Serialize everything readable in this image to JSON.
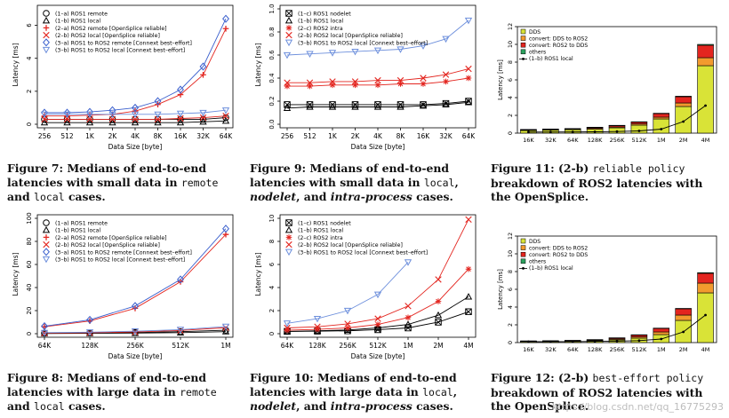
{
  "charts": [
    {
      "id": "fig7",
      "type": "line",
      "x_categories": [
        "256",
        "512",
        "1K",
        "2K",
        "4K",
        "8K",
        "16K",
        "32K",
        "64K"
      ],
      "ylabel": "Latency [ms]",
      "xlabel": "Data Size [byte]",
      "ylim": [
        0,
        7
      ],
      "yticks": [
        0,
        2,
        4,
        6
      ],
      "legend": "top-left",
      "series": [
        {
          "name": "(1–a) ROS1 remote",
          "marker": "circle",
          "color": "#000000",
          "values": [
            0.3,
            0.3,
            0.3,
            0.3,
            0.3,
            0.3,
            0.3,
            0.3,
            0.4
          ]
        },
        {
          "name": "(1–b) ROS1 local",
          "marker": "triangle",
          "color": "#000000",
          "values": [
            0.1,
            0.1,
            0.1,
            0.1,
            0.1,
            0.1,
            0.1,
            0.15,
            0.2
          ]
        },
        {
          "name": "(2–a) ROS2 remote [OpenSplice reliable]",
          "marker": "plus",
          "color": "#e3251f",
          "values": [
            0.5,
            0.5,
            0.55,
            0.6,
            0.8,
            1.2,
            1.8,
            3.0,
            5.8
          ]
        },
        {
          "name": "(2–b) ROS2 local [OpenSplice reliable]",
          "marker": "x",
          "color": "#e3251f",
          "values": [
            0.3,
            0.3,
            0.3,
            0.3,
            0.3,
            0.3,
            0.35,
            0.4,
            0.5
          ]
        },
        {
          "name": "(3–a) ROS1 to ROS2 remote [Connext best–effort]",
          "marker": "diamond",
          "color": "#3a5fcd",
          "values": [
            0.7,
            0.7,
            0.75,
            0.85,
            1.0,
            1.4,
            2.1,
            3.5,
            6.4
          ]
        },
        {
          "name": "(3–b) ROS1 to ROS2 local [Connext best–effort]",
          "marker": "dtriangle",
          "color": "#6d8fdc",
          "values": [
            0.6,
            0.6,
            0.6,
            0.6,
            0.6,
            0.6,
            0.65,
            0.7,
            0.85
          ]
        }
      ]
    },
    {
      "id": "fig9",
      "type": "line",
      "x_categories": [
        "256",
        "512",
        "1K",
        "2K",
        "4K",
        "8K",
        "16K",
        "32K",
        "64K"
      ],
      "ylabel": "Latency [ms]",
      "xlabel": "Data Size [byte]",
      "ylim": [
        0,
        1
      ],
      "yticks": [
        0.0,
        0.2,
        0.4,
        0.6,
        0.8,
        1.0
      ],
      "legend": "top-left",
      "series": [
        {
          "name": "(1–c) ROS1 nodelet",
          "marker": "boxx",
          "color": "#000000",
          "values": [
            0.17,
            0.17,
            0.17,
            0.17,
            0.17,
            0.17,
            0.17,
            0.18,
            0.2
          ]
        },
        {
          "name": "(1–b) ROS1 local",
          "marker": "triangle",
          "color": "#000000",
          "values": [
            0.14,
            0.15,
            0.15,
            0.15,
            0.15,
            0.15,
            0.16,
            0.17,
            0.19
          ]
        },
        {
          "name": "(2–c) ROS2 intra",
          "marker": "star",
          "color": "#e3251f",
          "values": [
            0.33,
            0.33,
            0.34,
            0.34,
            0.34,
            0.35,
            0.35,
            0.37,
            0.4
          ]
        },
        {
          "name": "(2–b) ROS2 local [OpenSplice reliable]",
          "marker": "x",
          "color": "#e3251f",
          "values": [
            0.36,
            0.36,
            0.37,
            0.37,
            0.38,
            0.38,
            0.4,
            0.43,
            0.48
          ]
        },
        {
          "name": "(3–b) ROS1 to ROS2 local [Connext best–effort]",
          "marker": "dtriangle",
          "color": "#6d8fdc",
          "values": [
            0.6,
            0.61,
            0.62,
            0.63,
            0.64,
            0.65,
            0.68,
            0.74,
            0.9
          ]
        }
      ]
    },
    {
      "id": "fig11",
      "type": "bar",
      "x_categories": [
        "16K",
        "32K",
        "64K",
        "128K",
        "256K",
        "512K",
        "1M",
        "2M",
        "4M"
      ],
      "ylabel": "Latency [ms]",
      "ylim": [
        0,
        12
      ],
      "yticks": [
        0,
        2,
        4,
        6,
        8,
        10,
        12
      ],
      "legend": "top-left",
      "stacks": [
        {
          "name": "DDS",
          "color": "#d9e337",
          "values": [
            0.3,
            0.35,
            0.4,
            0.45,
            0.6,
            0.9,
            1.6,
            3.0,
            7.6
          ]
        },
        {
          "name": "convert: DDS to ROS2",
          "color": "#f29a2e",
          "values": [
            0.05,
            0.05,
            0.05,
            0.1,
            0.1,
            0.15,
            0.2,
            0.4,
            0.9
          ]
        },
        {
          "name": "convert: ROS2 to DDS",
          "color": "#e3251f",
          "values": [
            0.05,
            0.05,
            0.05,
            0.1,
            0.15,
            0.2,
            0.4,
            0.7,
            1.4
          ]
        },
        {
          "name": "others",
          "color": "#2ca25f",
          "values": [
            0.02,
            0.02,
            0.02,
            0.02,
            0.03,
            0.03,
            0.04,
            0.06,
            0.1
          ]
        }
      ],
      "line": {
        "name": "(1–b) ROS1 local",
        "color": "#000000",
        "values": [
          0.12,
          0.13,
          0.13,
          0.15,
          0.18,
          0.25,
          0.45,
          1.3,
          3.1
        ]
      }
    },
    {
      "id": "fig8",
      "type": "line",
      "x_categories": [
        "64K",
        "128K",
        "256K",
        "512K",
        "1M"
      ],
      "ylabel": "Latency [ms]",
      "xlabel": "Data Size [byte]",
      "ylim": [
        0,
        100
      ],
      "yticks": [
        0,
        20,
        40,
        60,
        80,
        100
      ],
      "legend": "top-left",
      "series": [
        {
          "name": "(1–a) ROS1 remote",
          "marker": "circle",
          "color": "#000000",
          "values": [
            0.4,
            0.6,
            1.0,
            1.8,
            3.0
          ]
        },
        {
          "name": "(1–b) ROS1 local",
          "marker": "triangle",
          "color": "#000000",
          "values": [
            0.2,
            0.3,
            0.5,
            0.9,
            1.8
          ]
        },
        {
          "name": "(2–a) ROS2 remote [OpenSplice reliable]",
          "marker": "plus",
          "color": "#e3251f",
          "values": [
            6,
            11,
            22,
            45,
            86
          ]
        },
        {
          "name": "(2–b) ROS2 local [OpenSplice reliable]",
          "marker": "x",
          "color": "#e3251f",
          "values": [
            0.5,
            0.8,
            1.5,
            2.8,
            5.2
          ]
        },
        {
          "name": "(3–a) ROS1 to ROS2 remote [Connext best–effort]",
          "marker": "diamond",
          "color": "#3a5fcd",
          "values": [
            6.5,
            12,
            24,
            47,
            91
          ]
        },
        {
          "name": "(3–b) ROS1 to ROS2 local [Connext best–effort]",
          "marker": "dtriangle",
          "color": "#6d8fdc",
          "values": [
            0.9,
            1.3,
            2.2,
            3.5,
            6.2
          ]
        }
      ]
    },
    {
      "id": "fig10",
      "type": "line",
      "x_categories": [
        "64K",
        "128K",
        "256K",
        "512K",
        "1M",
        "2M",
        "4M"
      ],
      "ylabel": "Latency [ms]",
      "xlabel": "Data Size [byte]",
      "ylim": [
        0,
        10
      ],
      "yticks": [
        0,
        2,
        4,
        6,
        8,
        10
      ],
      "legend": "top-left",
      "series": [
        {
          "name": "(1–c) ROS1 nodelet",
          "marker": "boxx",
          "color": "#000000",
          "values": [
            0.2,
            0.22,
            0.25,
            0.35,
            0.5,
            1.0,
            1.9
          ]
        },
        {
          "name": "(1–b) ROS1 local",
          "marker": "triangle",
          "color": "#000000",
          "values": [
            0.2,
            0.25,
            0.32,
            0.5,
            0.8,
            1.6,
            3.2
          ]
        },
        {
          "name": "(2–c) ROS2 intra",
          "marker": "star",
          "color": "#e3251f",
          "values": [
            0.3,
            0.38,
            0.5,
            0.8,
            1.4,
            2.8,
            5.6
          ]
        },
        {
          "name": "(2–b) ROS2 local [OpenSplice reliable]",
          "marker": "x",
          "color": "#e3251f",
          "values": [
            0.5,
            0.6,
            0.85,
            1.3,
            2.4,
            4.7,
            9.9
          ]
        },
        {
          "name": "(3–b) ROS1 to ROS2 local [Connext best–effort]",
          "marker": "dtriangle",
          "color": "#6d8fdc",
          "values": [
            0.9,
            1.3,
            2.0,
            3.4,
            6.2,
            null,
            null
          ]
        }
      ]
    },
    {
      "id": "fig12",
      "type": "bar",
      "x_categories": [
        "16K",
        "32K",
        "64K",
        "128K",
        "256K",
        "512K",
        "1M",
        "2M",
        "4M"
      ],
      "ylabel": "Latency [ms]",
      "ylim": [
        0,
        12
      ],
      "yticks": [
        0,
        2,
        4,
        6,
        8,
        10,
        12
      ],
      "legend": "top-left",
      "stacks": [
        {
          "name": "DDS",
          "color": "#d9e337",
          "values": [
            0.1,
            0.12,
            0.14,
            0.18,
            0.3,
            0.5,
            0.9,
            2.5,
            5.6
          ]
        },
        {
          "name": "convert: DDS to ROS2",
          "color": "#f29a2e",
          "values": [
            0.04,
            0.04,
            0.05,
            0.07,
            0.1,
            0.15,
            0.3,
            0.6,
            1.1
          ]
        },
        {
          "name": "convert: ROS2 to DDS",
          "color": "#e3251f",
          "values": [
            0.04,
            0.04,
            0.05,
            0.07,
            0.12,
            0.2,
            0.4,
            0.7,
            1.1
          ]
        },
        {
          "name": "others",
          "color": "#2ca25f",
          "values": [
            0.01,
            0.01,
            0.01,
            0.02,
            0.02,
            0.03,
            0.03,
            0.05,
            0.08
          ]
        }
      ],
      "line": {
        "name": "(1–b) ROS1 local",
        "color": "#000000",
        "values": [
          0.1,
          0.1,
          0.11,
          0.13,
          0.16,
          0.22,
          0.4,
          1.2,
          3.1
        ]
      }
    }
  ],
  "captions": {
    "fig7": {
      "label": "Figure 7:",
      "parts": [
        "Medians of end-to-end latencies with small data in ",
        "remote",
        " and ",
        "local",
        " cases."
      ]
    },
    "fig9": {
      "label": "Figure 9:",
      "parts": [
        "Medians of end-to-end latencies with small data in ",
        "local",
        ", ",
        "nodelet",
        ", and ",
        "intra-process",
        " cases."
      ]
    },
    "fig11": {
      "label": "Figure 11:",
      "parts": [
        "(2-b) ",
        "reliable policy",
        " breakdown of ROS2 latencies with the OpenSplice."
      ]
    },
    "fig8": {
      "label": "Figure 8:",
      "parts": [
        "Medians of end-to-end latencies with large data in ",
        "remote",
        " and ",
        "local",
        " cases."
      ]
    },
    "fig10": {
      "label": "Figure 10:",
      "parts": [
        "Medians of end-to-end latencies with large data in ",
        "local",
        ", ",
        "nodelet",
        ", and ",
        "intra-process",
        " cases."
      ]
    },
    "fig12": {
      "label": "Figure 12:",
      "parts": [
        "(2-b) ",
        "best-effort policy",
        " breakdown of ROS2 latencies with the OpenSplice."
      ]
    }
  },
  "watermark": "https://blog.csdn.net/qq_16775293"
}
